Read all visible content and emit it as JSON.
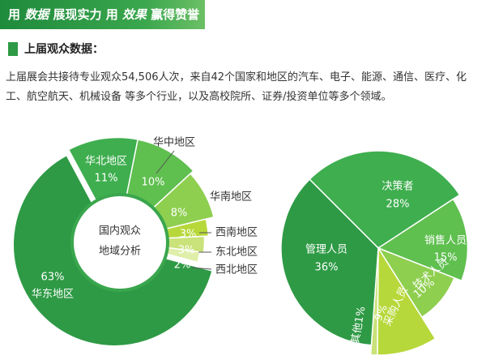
{
  "banner": {
    "parts": [
      "用 ",
      "数据",
      " 展现实力 用 ",
      "效果",
      " 赢得赞誉"
    ]
  },
  "section_title": "上届观众数据：",
  "paragraph": "上届展会共接待专业观众54,506人次，来自42个国家和地区的汽车、电子、能源、通信、医疗、化工、航空航天、机械设备 等多个行业，以及高校院所、证券/投资单位等多个领域。",
  "colors": {
    "banner": "#2e9a45",
    "darkest": "#2e9a45",
    "dark": "#3fae4f",
    "mid": "#5fbf4f",
    "light": "#8fcf50",
    "yellow_green": "#b7d83a",
    "pale": "#c9e27a",
    "palest": "#dfeea8"
  },
  "chart_data": [
    {
      "type": "pie",
      "center_label": [
        "国内观众",
        "地域分析"
      ],
      "unit": "%",
      "slices": [
        {
          "name": "华东地区",
          "value": 63,
          "label": "63%"
        },
        {
          "name": "华北地区",
          "value": 11,
          "label": "11%"
        },
        {
          "name": "华中地区",
          "value": 10,
          "label": "10%"
        },
        {
          "name": "华南地区",
          "value": 8,
          "label": "8%"
        },
        {
          "name": "西南地区",
          "value": 3,
          "label": "3%"
        },
        {
          "name": "东北地区",
          "value": 3,
          "label": "3%"
        },
        {
          "name": "西北地区",
          "value": 2,
          "label": "2%"
        }
      ]
    },
    {
      "type": "pie",
      "unit": "%",
      "slices": [
        {
          "name": "决策者",
          "value": 28,
          "label": "28%"
        },
        {
          "name": "销售人员",
          "value": 15,
          "label": "15%"
        },
        {
          "name": "技术人员",
          "value": 10,
          "label": "10%"
        },
        {
          "name": "采购人员",
          "value": 9,
          "label": "9%"
        },
        {
          "name": "其他",
          "value": 1,
          "label": "其他1%"
        },
        {
          "name": "管理人员",
          "value": 36,
          "label": "36%"
        }
      ]
    }
  ]
}
